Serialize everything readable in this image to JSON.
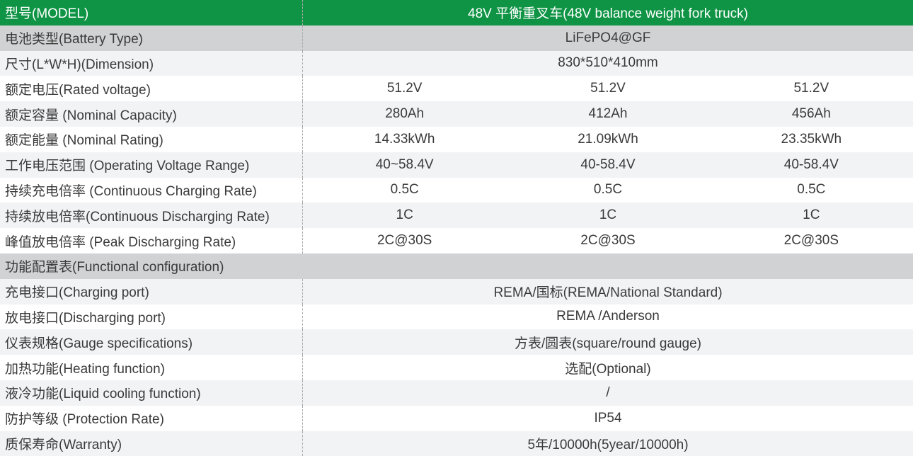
{
  "header": {
    "label": "型号(MODEL)",
    "value": "48V 平衡重叉车(48V balance weight fork truck)"
  },
  "rows": [
    {
      "label": "电池类型(Battery Type)",
      "values": [
        "LiFePO4@GF"
      ],
      "bg": "gray"
    },
    {
      "label": "尺寸(L*W*H)(Dimension)",
      "values": [
        "830*510*410mm"
      ],
      "bg": "light"
    },
    {
      "label": "额定电压(Rated voltage)",
      "values": [
        "51.2V",
        "51.2V",
        "51.2V"
      ],
      "bg": "white"
    },
    {
      "label": "额定容量 (Nominal Capacity)",
      "values": [
        "280Ah",
        "412Ah",
        "456Ah"
      ],
      "bg": "light"
    },
    {
      "label": "额定能量 (Nominal Rating)",
      "values": [
        "14.33kWh",
        "21.09kWh",
        "23.35kWh"
      ],
      "bg": "white"
    },
    {
      "label": "工作电压范围 (Operating Voltage Range)",
      "values": [
        "40~58.4V",
        "40-58.4V",
        "40-58.4V"
      ],
      "bg": "light"
    },
    {
      "label": "持续充电倍率 (Continuous Charging Rate)",
      "values": [
        "0.5C",
        "0.5C",
        "0.5C"
      ],
      "bg": "white"
    },
    {
      "label": "持续放电倍率(Continuous Discharging Rate)",
      "values": [
        "1C",
        "1C",
        "1C"
      ],
      "bg": "light"
    },
    {
      "label": "峰值放电倍率 (Peak Discharging Rate)",
      "values": [
        "2C@30S",
        "2C@30S",
        "2C@30S"
      ],
      "bg": "white"
    },
    {
      "label": "功能配置表(Functional configuration)",
      "values": [],
      "bg": "gray",
      "section": true
    },
    {
      "label": "充电接口(Charging port)",
      "values": [
        "REMA/国标(REMA/National Standard)"
      ],
      "bg": "light"
    },
    {
      "label": "放电接口(Discharging port)",
      "values": [
        "REMA /Anderson"
      ],
      "bg": "white"
    },
    {
      "label": "仪表规格(Gauge specifications)",
      "values": [
        "方表/圆表(square/round gauge)"
      ],
      "bg": "light"
    },
    {
      "label": "加热功能(Heating function)",
      "values": [
        "选配(Optional)"
      ],
      "bg": "white"
    },
    {
      "label": "液冷功能(Liquid cooling function)",
      "values": [
        "/"
      ],
      "bg": "light"
    },
    {
      "label": "防护等级 (Protection Rate)",
      "values": [
        "IP54"
      ],
      "bg": "white"
    },
    {
      "label": "质保寿命(Warranty)",
      "values": [
        "5年/10000h(5year/10000h)"
      ],
      "bg": "light"
    }
  ],
  "colors": {
    "header": "#0f9445",
    "gray": "#d1d2d4",
    "light": "#f2f3f5"
  }
}
